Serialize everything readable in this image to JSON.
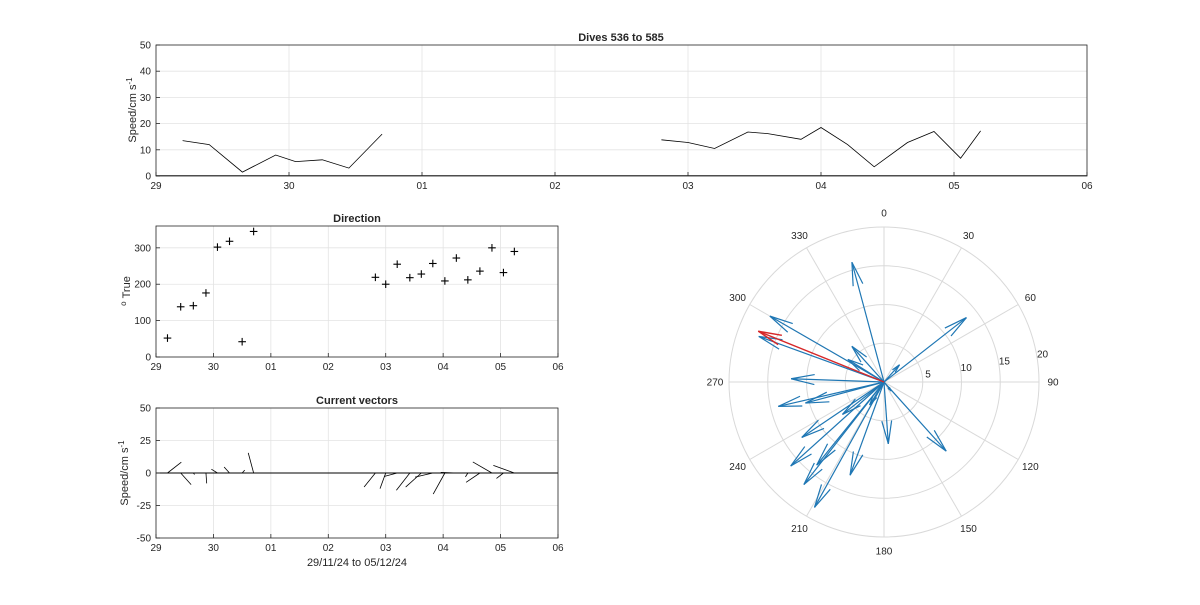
{
  "figure": {
    "speed_time": {
      "type": "line",
      "title": "Dives 536 to 585",
      "ylabel": "Speed/cm s",
      "ylabel_exp": "-1",
      "xlim": [
        0,
        7
      ],
      "ylim": [
        0,
        50
      ],
      "xticks": [
        0,
        1,
        2,
        3,
        4,
        5,
        6,
        7
      ],
      "xtick_labels": [
        "29",
        "30",
        "01",
        "02",
        "03",
        "04",
        "05",
        "06"
      ],
      "yticks": [
        0,
        10,
        20,
        30,
        40,
        50
      ],
      "ytick_labels": [
        "0",
        "10",
        "20",
        "30",
        "40",
        "50"
      ],
      "series": [
        {
          "x": [
            0.0,
            0.2,
            0.4,
            0.6,
            0.8,
            1.0,
            1.2,
            1.4,
            1.6,
            1.8
          ],
          "y": [
            0,
            0,
            0,
            0,
            0,
            0,
            0,
            0,
            0,
            0
          ],
          "style": "baseline"
        },
        {
          "x": [
            0.2,
            0.4,
            0.65,
            0.9,
            1.05,
            1.25,
            1.45,
            1.7
          ],
          "y": [
            13.5,
            12,
            1.5,
            8,
            5.5,
            6.2,
            3,
            16
          ],
          "style": "line"
        },
        {
          "x": [
            3.8,
            4.0,
            4.2,
            4.45,
            4.6,
            4.85,
            5.0,
            5.2,
            5.4,
            5.65,
            5.85,
            6.05,
            6.2
          ],
          "y": [
            13.8,
            12.8,
            10.5,
            16.8,
            16.2,
            14,
            18.5,
            12,
            3.5,
            12.8,
            17,
            6.8,
            17.2
          ],
          "style": "line"
        }
      ]
    },
    "direction": {
      "type": "scatter",
      "title": "Direction",
      "ylabel": "True",
      "ylabel_prefix": "o",
      "xlim": [
        0,
        7
      ],
      "ylim": [
        0,
        360
      ],
      "xticks": [
        0,
        1,
        2,
        3,
        4,
        5,
        6,
        7
      ],
      "xtick_labels": [
        "29",
        "30",
        "01",
        "02",
        "03",
        "04",
        "05",
        "06"
      ],
      "yticks": [
        0,
        100,
        200,
        300
      ],
      "ytick_labels": [
        "0",
        "100",
        "200",
        "300"
      ],
      "x": [
        0.2,
        0.43,
        0.65,
        0.87,
        1.07,
        1.28,
        1.5,
        1.7,
        3.82,
        4.0,
        4.2,
        4.42,
        4.62,
        4.82,
        5.03,
        5.23,
        5.43,
        5.64,
        5.85,
        6.05,
        6.24
      ],
      "y": [
        52,
        138,
        141,
        176,
        302,
        318,
        42,
        345,
        219,
        200,
        255,
        218,
        228,
        257,
        209,
        272,
        212,
        236,
        300,
        232,
        290
      ],
      "marker": "+"
    },
    "vectors": {
      "type": "quiver",
      "title": "Current vectors",
      "ylabel": "Speed/cm s",
      "ylabel_exp": "-1",
      "xlabel": "29/11/24 to 05/12/24",
      "xlim": [
        0,
        7
      ],
      "ylim": [
        -50,
        50
      ],
      "xticks": [
        0,
        1,
        2,
        3,
        4,
        5,
        6,
        7
      ],
      "xtick_labels": [
        "29",
        "30",
        "01",
        "02",
        "03",
        "04",
        "05",
        "06"
      ],
      "yticks": [
        -50,
        -25,
        0,
        25,
        50
      ],
      "ytick_labels": [
        "-50",
        "-25",
        "0",
        "25",
        "50"
      ],
      "x": [
        0.2,
        0.43,
        0.65,
        0.87,
        1.07,
        1.28,
        1.5,
        1.7,
        3.82,
        4.0,
        4.2,
        4.42,
        4.62,
        4.82,
        5.03,
        5.23,
        5.43,
        5.64,
        5.85,
        6.05,
        6.24
      ],
      "speed": [
        13.5,
        12,
        1.5,
        8,
        5.5,
        6.2,
        3,
        16,
        13.8,
        12.8,
        10.5,
        16.8,
        16.2,
        14,
        18.5,
        12,
        3.5,
        12.8,
        17,
        6.8,
        17.2
      ],
      "dir": [
        52,
        138,
        141,
        176,
        302,
        318,
        42,
        345,
        219,
        200,
        255,
        218,
        228,
        257,
        209,
        272,
        212,
        236,
        300,
        232,
        290
      ]
    },
    "polar": {
      "type": "compass",
      "rmax": 20,
      "rings": [
        5,
        10,
        15,
        20
      ],
      "ring_labels": [
        "5",
        "10",
        "15",
        "20"
      ],
      "angle_labels": [
        "0",
        "30",
        "60",
        "90",
        "120",
        "150",
        "180",
        "210",
        "240",
        "270",
        "300",
        "330"
      ],
      "vectors": [
        {
          "dir": 52,
          "speed": 13.5
        },
        {
          "dir": 138,
          "speed": 12
        },
        {
          "dir": 141,
          "speed": 1.5
        },
        {
          "dir": 176,
          "speed": 8
        },
        {
          "dir": 302,
          "speed": 5.5
        },
        {
          "dir": 318,
          "speed": 6.2
        },
        {
          "dir": 42,
          "speed": 3
        },
        {
          "dir": 345,
          "speed": 16
        },
        {
          "dir": 219,
          "speed": 13.8
        },
        {
          "dir": 200,
          "speed": 12.8
        },
        {
          "dir": 255,
          "speed": 10.5
        },
        {
          "dir": 218,
          "speed": 16.8
        },
        {
          "dir": 228,
          "speed": 16.2
        },
        {
          "dir": 257,
          "speed": 14
        },
        {
          "dir": 209,
          "speed": 18.5
        },
        {
          "dir": 272,
          "speed": 12
        },
        {
          "dir": 212,
          "speed": 3.5
        },
        {
          "dir": 236,
          "speed": 12.8
        },
        {
          "dir": 300,
          "speed": 17
        },
        {
          "dir": 232,
          "speed": 6.8
        },
        {
          "dir": 290,
          "speed": 17.2
        }
      ],
      "mean_vector": {
        "dir": 292,
        "speed": 17.5
      },
      "vector_color": "#1f77b4",
      "mean_color": "#d62728"
    }
  }
}
